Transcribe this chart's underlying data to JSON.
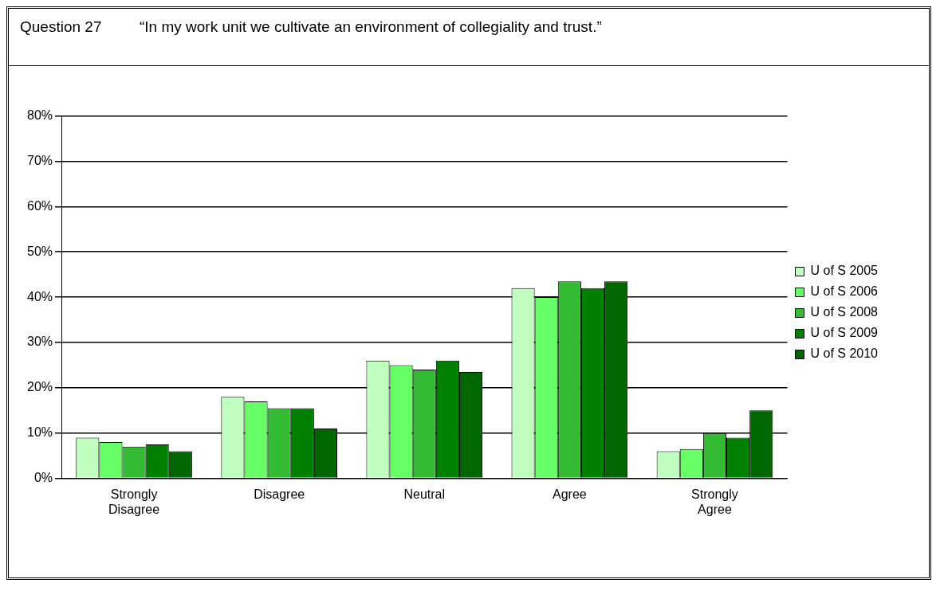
{
  "chart_data": {
    "type": "bar",
    "title": "Question 27",
    "subtitle": "“In my work unit we cultivate an environment of collegiality and trust.”",
    "categories": [
      [
        "Strongly",
        "Disagree"
      ],
      "Disagree",
      "Neutral",
      "Agree",
      [
        "Strongly",
        "Agree"
      ]
    ],
    "series": [
      {
        "name": "U of S 2005",
        "color": "#c0ffc0",
        "values": [
          9,
          18,
          26,
          42,
          6
        ]
      },
      {
        "name": "U of S 2006",
        "color": "#66ff66",
        "values": [
          8,
          17,
          25,
          40,
          6.5
        ]
      },
      {
        "name": "U of S 2008",
        "color": "#33bb33",
        "values": [
          7,
          15.5,
          24,
          43.5,
          10
        ]
      },
      {
        "name": "U of S 2009",
        "color": "#008000",
        "values": [
          7.5,
          15.5,
          26,
          42,
          9
        ]
      },
      {
        "name": "U of S 2010",
        "color": "#006600",
        "values": [
          6,
          11,
          23.5,
          43.5,
          15
        ]
      }
    ],
    "ylim": [
      0,
      80
    ],
    "yticks": [
      {
        "value": 0,
        "label": "0%"
      },
      {
        "value": 10,
        "label": "10%"
      },
      {
        "value": 20,
        "label": "20%"
      },
      {
        "value": 30,
        "label": "30%"
      },
      {
        "value": 40,
        "label": "40%"
      },
      {
        "value": 50,
        "label": "50%"
      },
      {
        "value": 60,
        "label": "60%"
      },
      {
        "value": 70,
        "label": "70%"
      },
      {
        "value": 80,
        "label": "80%"
      }
    ],
    "grid": "y",
    "legend": "right"
  }
}
